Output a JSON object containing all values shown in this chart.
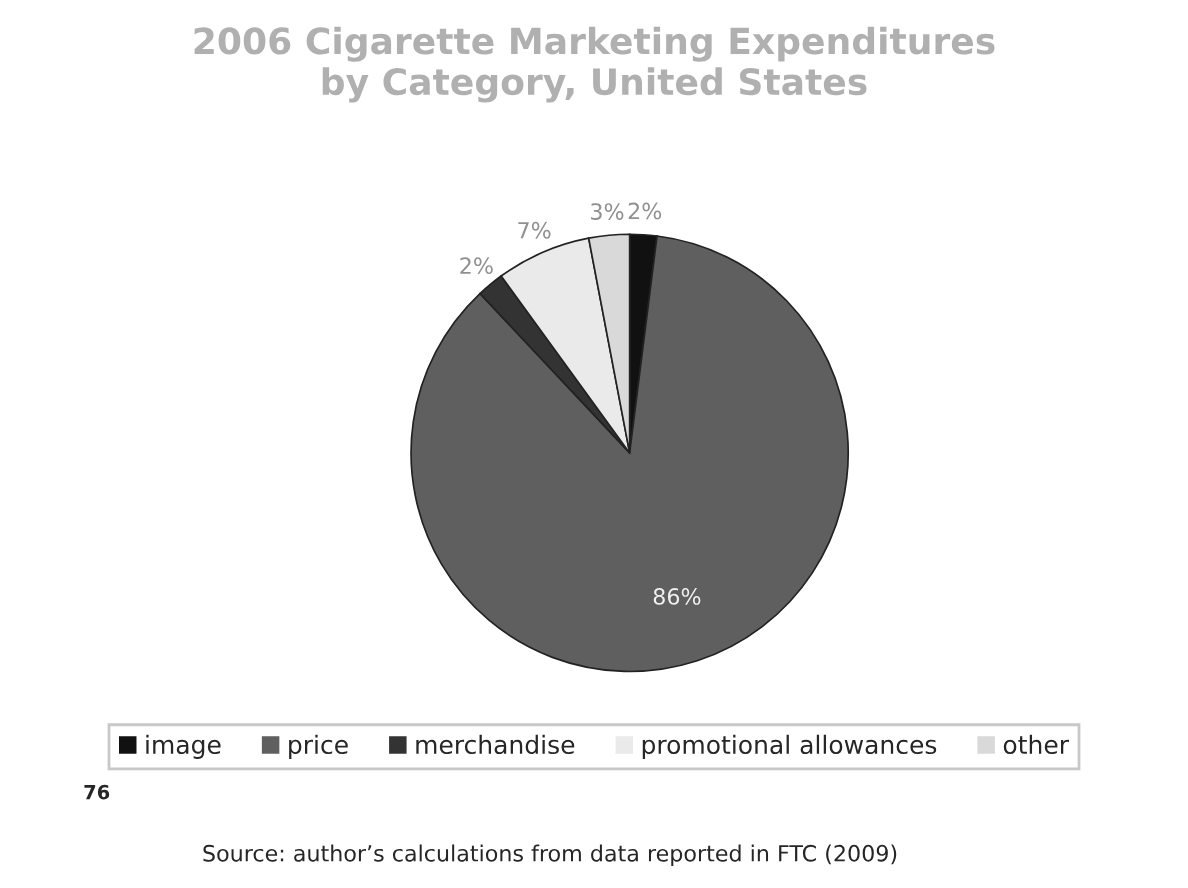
{
  "chart_data": {
    "type": "pie",
    "title": "2006 Cigarette Marketing Expenditures\nby Category, United States",
    "categories": [
      "image",
      "price",
      "merchandise",
      "promotional allowances",
      "other"
    ],
    "values": [
      2,
      86,
      2,
      7,
      3
    ],
    "value_labels": [
      "2%",
      "86%",
      "2%",
      "7%",
      "3%"
    ],
    "colors": [
      "#111111",
      "#5f5f5f",
      "#333333",
      "#eaeaea",
      "#d9d9d9"
    ],
    "legend": "bottom",
    "annotations": [
      "76",
      "Source: author’s calculations from data reported in FTC (2009)"
    ]
  }
}
